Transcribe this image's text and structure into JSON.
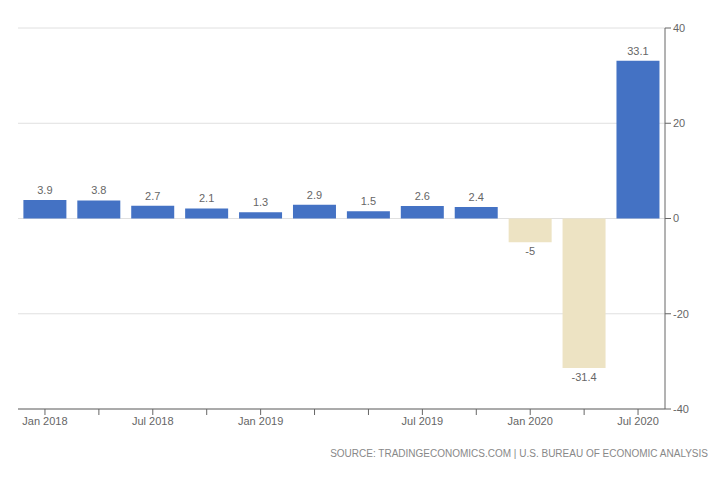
{
  "chart_data": {
    "type": "bar",
    "categories": [
      "Jan 2018",
      null,
      "Jul 2018",
      null,
      "Jan 2019",
      null,
      null,
      "Jul 2019",
      null,
      "Jan 2020",
      null,
      "Jul 2020"
    ],
    "values": [
      3.9,
      3.8,
      2.7,
      2.1,
      1.3,
      2.9,
      1.5,
      2.6,
      2.4,
      -5.0,
      -31.4,
      33.1
    ],
    "colors": [
      "#4472c4",
      "#4472c4",
      "#4472c4",
      "#4472c4",
      "#4472c4",
      "#4472c4",
      "#4472c4",
      "#4472c4",
      "#4472c4",
      "#ede3c3",
      "#ede3c3",
      "#4472c4"
    ],
    "ylim": [
      -40,
      40
    ],
    "yticks": [
      -40,
      -20,
      0,
      20,
      40
    ],
    "grid": true,
    "data_labels": true,
    "annotations": [
      "SOURCE: TRADINGECONOMICS.COM | U.S. BUREAU OF ECONOMIC ANALYSIS"
    ]
  }
}
